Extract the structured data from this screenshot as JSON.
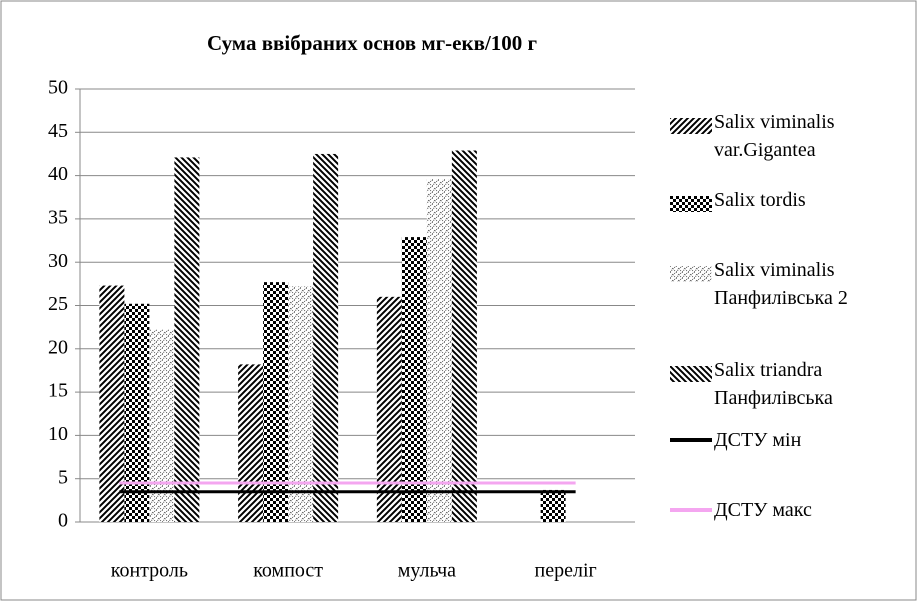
{
  "chart_data": {
    "type": "bar",
    "title": "Сума ввібраних основ мг-екв/100 г",
    "categories": [
      "контроль",
      "компост",
      "мульча",
      "переліг"
    ],
    "series": [
      {
        "name": "Salix viminalis var.Gigantea",
        "color": "#000000",
        "pattern": "diagonal-right",
        "values": [
          27.3,
          18.2,
          26,
          null
        ]
      },
      {
        "name": "Salix tordis",
        "color": "#000000",
        "pattern": "checker",
        "values": [
          25.2,
          27.7,
          32.9,
          3.7
        ]
      },
      {
        "name": "Salix viminalis Панфилівська 2",
        "color": "#555555",
        "pattern": "dotted-diagonal",
        "values": [
          22.2,
          27.2,
          39.6,
          null
        ]
      },
      {
        "name": "Salix triandra Панфилівська",
        "color": "#000000",
        "pattern": "diagonal-left",
        "values": [
          42.1,
          42.5,
          42.9,
          null
        ]
      },
      {
        "name": "ДСТУ мін",
        "type": "line",
        "color": "#000000",
        "values": [
          3.5,
          3.5,
          3.5,
          3.5
        ]
      },
      {
        "name": "ДСТУ макс",
        "type": "line",
        "color": "#f4a6f0",
        "values": [
          4.5,
          4.5,
          4.5,
          4.5
        ]
      }
    ],
    "ylim": [
      0,
      50
    ],
    "yticks": [
      0,
      5,
      10,
      15,
      20,
      25,
      30,
      35,
      40,
      45,
      50
    ],
    "grid": true,
    "legend": "right"
  }
}
